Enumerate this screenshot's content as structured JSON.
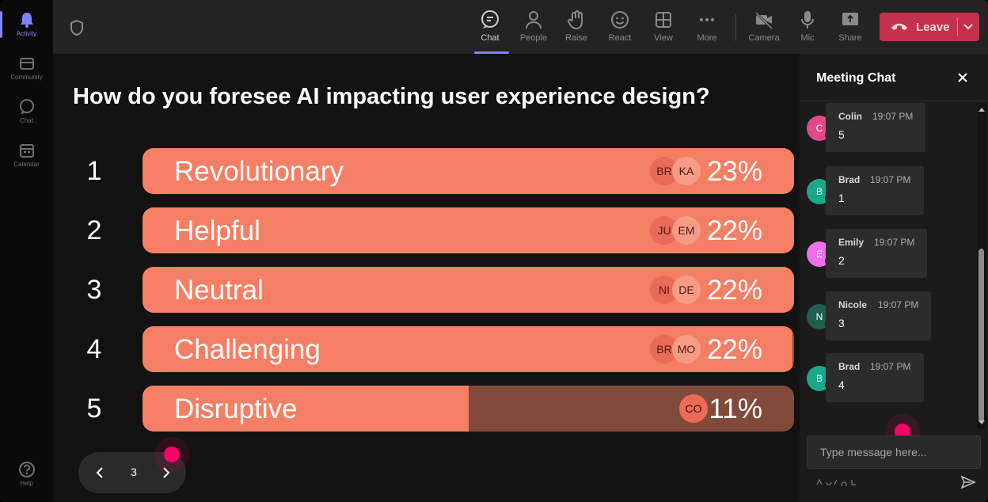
{
  "rail": {
    "items": [
      {
        "label": "Activity",
        "icon": "bell-icon",
        "active": true
      },
      {
        "label": "Community",
        "icon": "community-icon"
      },
      {
        "label": "Chat",
        "icon": "chat-icon"
      },
      {
        "label": "Calendar",
        "icon": "calendar-icon"
      }
    ],
    "help": {
      "label": "Help",
      "icon": "help-icon"
    }
  },
  "toolbar": {
    "items": [
      {
        "label": "Chat",
        "icon": "chat-icon",
        "active": true
      },
      {
        "label": "People",
        "icon": "people-icon"
      },
      {
        "label": "Raise",
        "icon": "raise-hand-icon"
      },
      {
        "label": "React",
        "icon": "smiley-icon"
      },
      {
        "label": "View",
        "icon": "grid-view-icon"
      },
      {
        "label": "More",
        "icon": "more-icon"
      },
      {
        "label": "Camera",
        "icon": "camera-off-icon"
      },
      {
        "label": "Mic",
        "icon": "mic-icon"
      },
      {
        "label": "Share",
        "icon": "share-icon"
      }
    ],
    "leave_label": "Leave",
    "leave_color": "#c4314b"
  },
  "poll": {
    "question": "How do you foresee AI impacting user experience design?",
    "bar_color": "#f47f64",
    "track_color": "#824a3a",
    "options": [
      {
        "num": "1",
        "label": "Revolutionary",
        "pct_text": "23%",
        "fill": 1.0,
        "avatars": [
          "BR",
          "KA"
        ]
      },
      {
        "num": "2",
        "label": "Helpful",
        "pct_text": "22%",
        "fill": 1.0,
        "avatars": [
          "JU",
          "EM"
        ]
      },
      {
        "num": "3",
        "label": "Neutral",
        "pct_text": "22%",
        "fill": 1.0,
        "avatars": [
          "NI",
          "DE"
        ]
      },
      {
        "num": "4",
        "label": "Challenging",
        "pct_text": "22%",
        "fill": 0.998,
        "avatars": [
          "BR",
          "MO"
        ]
      },
      {
        "num": "5",
        "label": "Disruptive",
        "pct_text": "11%",
        "fill": 0.5,
        "avatars": [
          "CO"
        ]
      }
    ],
    "page": "3"
  },
  "chat": {
    "title": "Meeting Chat",
    "placeholder": "Type message here...",
    "messages": [
      {
        "initial": "C",
        "name": "Colin",
        "time": "19:07 PM",
        "text": "5",
        "color": "#e04a8a"
      },
      {
        "initial": "B",
        "name": "Brad",
        "time": "19:07 PM",
        "text": "1",
        "color": "#1aa889"
      },
      {
        "initial": "E",
        "name": "Emily",
        "time": "19:07 PM",
        "text": "2",
        "color": "#f06ee8"
      },
      {
        "initial": "N",
        "name": "Nicole",
        "time": "19:07 PM",
        "text": "3",
        "color": "#1f5f4f"
      },
      {
        "initial": "B",
        "name": "Brad",
        "time": "19:07 PM",
        "text": "4",
        "color": "#1aa889"
      }
    ]
  }
}
